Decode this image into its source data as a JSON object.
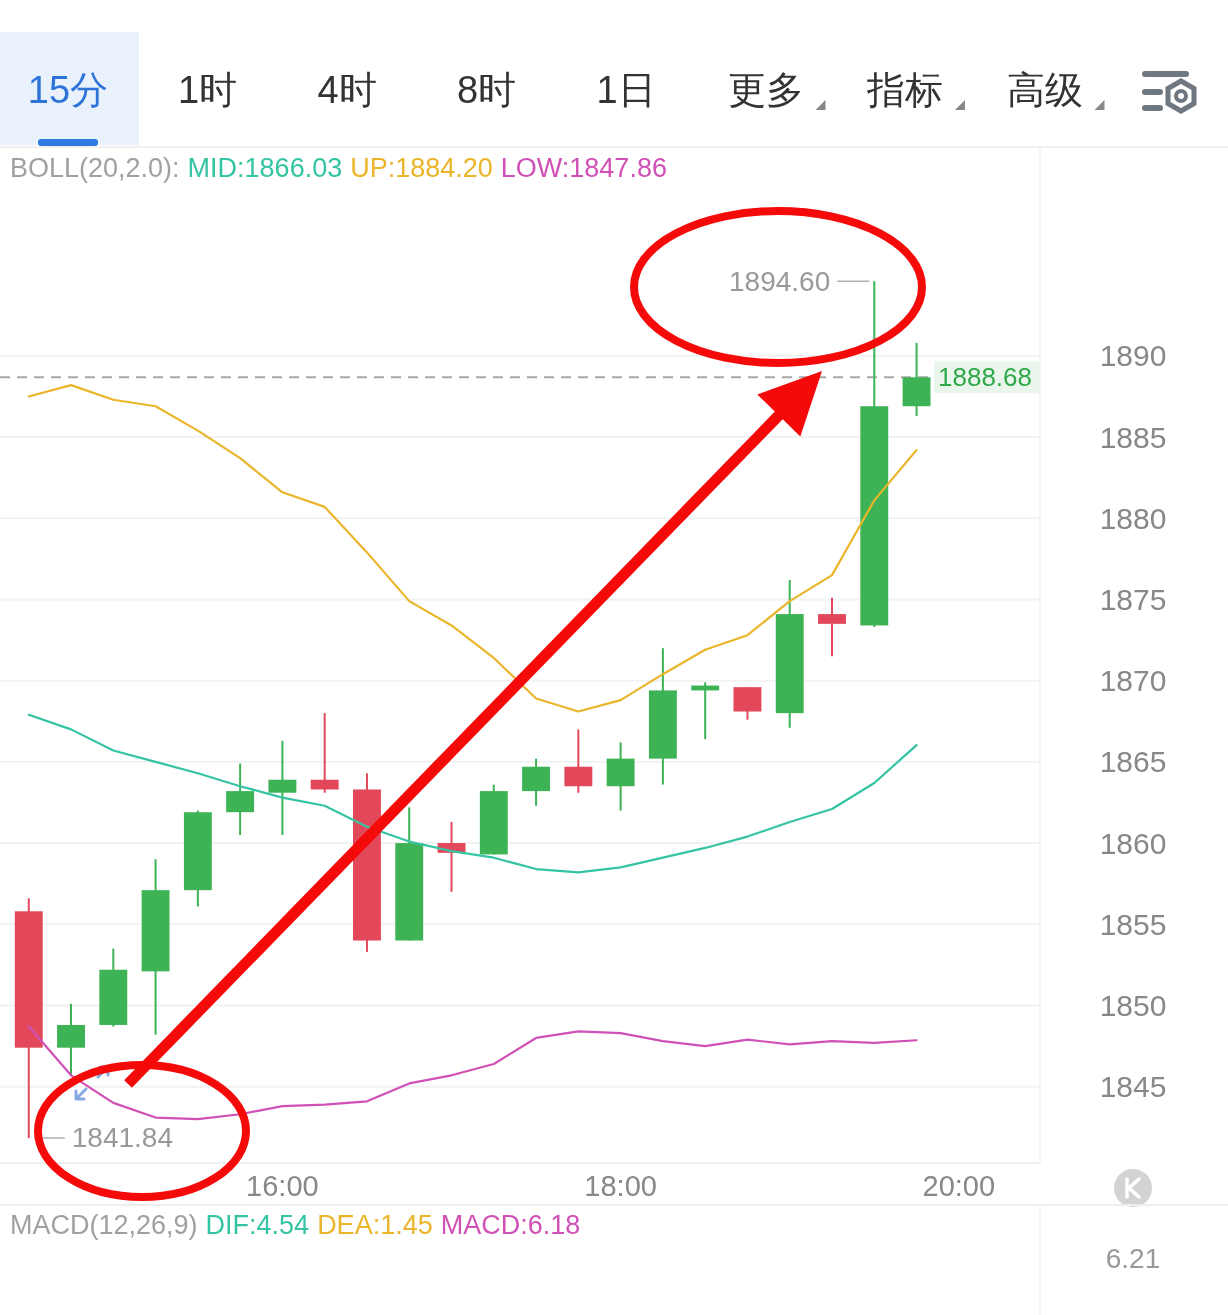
{
  "chart_data": [
    {
      "type": "other",
      "annotations": [
        "15分",
        "1时",
        "4时",
        "8时",
        "1日",
        "更多",
        "指标",
        "高级"
      ]
    },
    {
      "type": "candlestick",
      "title": "BOLL(20,2.0):",
      "x": [
        14.5,
        14.75,
        15,
        15.25,
        15.5,
        15.75,
        16,
        16.25,
        16.5,
        16.75,
        17,
        17.25,
        17.5,
        17.75,
        18,
        18.25,
        18.5,
        18.75,
        19,
        19.25,
        19.5,
        19.75
      ],
      "ohlc": [
        [
          1855.8,
          1856.6,
          1841.84,
          1847.4
        ],
        [
          1847.4,
          1850.1,
          1845.7,
          1848.8
        ],
        [
          1848.8,
          1853.5,
          1848.7,
          1852.2
        ],
        [
          1852.1,
          1859.0,
          1848.2,
          1857.1
        ],
        [
          1857.1,
          1862.0,
          1856.1,
          1861.9
        ],
        [
          1861.9,
          1864.9,
          1860.5,
          1863.2
        ],
        [
          1863.1,
          1866.3,
          1860.5,
          1863.9
        ],
        [
          1863.9,
          1868.0,
          1863.1,
          1863.3
        ],
        [
          1863.3,
          1864.3,
          1853.3,
          1854.0
        ],
        [
          1854.0,
          1862.2,
          1854.0,
          1860.0
        ],
        [
          1860.0,
          1861.3,
          1857.0,
          1859.4
        ],
        [
          1859.3,
          1863.6,
          1859.3,
          1863.2
        ],
        [
          1863.2,
          1865.2,
          1862.3,
          1864.7
        ],
        [
          1864.7,
          1867.0,
          1863.1,
          1863.5
        ],
        [
          1863.5,
          1866.2,
          1862.0,
          1865.2
        ],
        [
          1865.2,
          1872.0,
          1863.6,
          1869.4
        ],
        [
          1869.4,
          1869.9,
          1866.4,
          1869.7
        ],
        [
          1869.6,
          1869.6,
          1867.6,
          1868.1
        ],
        [
          1868.0,
          1876.2,
          1867.1,
          1874.1
        ],
        [
          1874.1,
          1875.1,
          1871.5,
          1873.5
        ],
        [
          1873.4,
          1894.6,
          1873.3,
          1886.9
        ],
        [
          1886.9,
          1890.8,
          1886.3,
          1888.68
        ]
      ],
      "colors": [
        "#e2475a",
        "#3db355",
        "#3db355",
        "#3db355",
        "#3db355",
        "#3db355",
        "#3db355",
        "#e2475a",
        "#e2475a",
        "#3db355",
        "#e2475a",
        "#3db355",
        "#3db355",
        "#e2475a",
        "#3db355",
        "#3db355",
        "#3db355",
        "#e2475a",
        "#3db355",
        "#e2475a",
        "#3db355",
        "#3db355"
      ],
      "series": [
        {
          "name": "MID:1866.03",
          "type": "line",
          "color": "#35c4a3",
          "values": [
            1867.9,
            1867.0,
            1865.7,
            1865.0,
            1864.3,
            1863.5,
            1862.8,
            1862.3,
            1861.0,
            1860.1,
            1859.5,
            1859.1,
            1858.4,
            1858.2,
            1858.5,
            1859.1,
            1859.7,
            1860.4,
            1861.3,
            1862.1,
            1863.7,
            1866.03
          ]
        },
        {
          "name": "UP:1884.20",
          "type": "line",
          "color": "#eab52a",
          "values": [
            1887.5,
            1888.2,
            1887.3,
            1886.9,
            1885.4,
            1883.7,
            1881.6,
            1880.7,
            1877.9,
            1874.9,
            1873.4,
            1871.4,
            1868.9,
            1868.1,
            1868.8,
            1870.4,
            1871.9,
            1872.8,
            1874.9,
            1876.5,
            1881.1,
            1884.2
          ]
        },
        {
          "name": "LOW:1847.86",
          "type": "line",
          "color": "#d150b5",
          "values": [
            1848.7,
            1845.7,
            1844.0,
            1843.1,
            1843.0,
            1843.3,
            1843.8,
            1843.9,
            1844.1,
            1845.2,
            1845.7,
            1846.4,
            1848.0,
            1848.4,
            1848.3,
            1847.8,
            1847.5,
            1847.9,
            1847.6,
            1847.8,
            1847.7,
            1847.86
          ]
        }
      ],
      "xlim": [
        14.33,
        20.48
      ],
      "ylim": [
        1840.3,
        1902.8
      ],
      "xticks": [
        {
          "value": 16,
          "label": "16:00"
        },
        {
          "value": 18,
          "label": "18:00"
        },
        {
          "value": 20,
          "label": "20:00"
        }
      ],
      "yticks": [
        1845,
        1850,
        1855,
        1860,
        1865,
        1870,
        1875,
        1880,
        1885,
        1890
      ],
      "grid": "y",
      "legend": "top",
      "ref_lines": [
        {
          "axis": "y",
          "value": 1888.68,
          "label": "1888.68",
          "color": "#a8a8a8",
          "line_style": "dashed"
        }
      ],
      "annotations": [
        {
          "text": "1894.60",
          "x": 19.5,
          "y": 1894.6
        },
        {
          "text": "1841.84",
          "x": 14.5,
          "y": 1841.84
        }
      ]
    },
    {
      "type": "other",
      "title": "MACD(12,26,9)",
      "annotations": [
        "DIF:4.54",
        "DEA:1.45",
        "MACD:6.18",
        "6.21"
      ],
      "colors": [
        "#35c4a3",
        "#eab52a",
        "#d150b5",
        "#999999"
      ]
    }
  ]
}
